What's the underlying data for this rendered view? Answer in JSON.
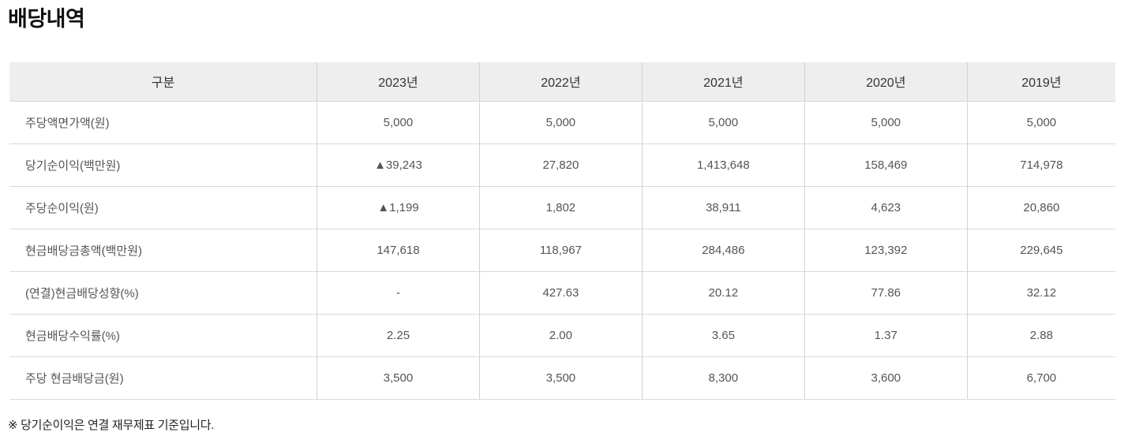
{
  "page": {
    "title": "배당내역",
    "footnote": "※ 당기순이익은 연결 재무제표 기준입니다."
  },
  "colors": {
    "header_bg": "#eeeeee",
    "grid_border": "#d9d9d9",
    "cell_text": "#555555",
    "header_text": "#333333",
    "title_text": "#111111"
  },
  "table": {
    "columns": [
      "구분",
      "2023년",
      "2022년",
      "2021년",
      "2020년",
      "2019년"
    ],
    "rows": [
      {
        "label": "주당액면가액(원)",
        "values": [
          "5,000",
          "5,000",
          "5,000",
          "5,000",
          "5,000"
        ]
      },
      {
        "label": "당기순이익(백만원)",
        "values": [
          "▲39,243",
          "27,820",
          "1,413,648",
          "158,469",
          "714,978"
        ]
      },
      {
        "label": "주당순이익(원)",
        "values": [
          "▲1,199",
          "1,802",
          "38,911",
          "4,623",
          "20,860"
        ]
      },
      {
        "label": "현금배당금총액(백만원)",
        "values": [
          "147,618",
          "118,967",
          "284,486",
          "123,392",
          "229,645"
        ]
      },
      {
        "label": "(연결)현금배당성향(%)",
        "values": [
          "-",
          "427.63",
          "20.12",
          "77.86",
          "32.12"
        ]
      },
      {
        "label": "현금배당수익률(%)",
        "values": [
          "2.25",
          "2.00",
          "3.65",
          "1.37",
          "2.88"
        ]
      },
      {
        "label": "주당 현금배당금(원)",
        "values": [
          "3,500",
          "3,500",
          "8,300",
          "3,600",
          "6,700"
        ]
      }
    ]
  }
}
